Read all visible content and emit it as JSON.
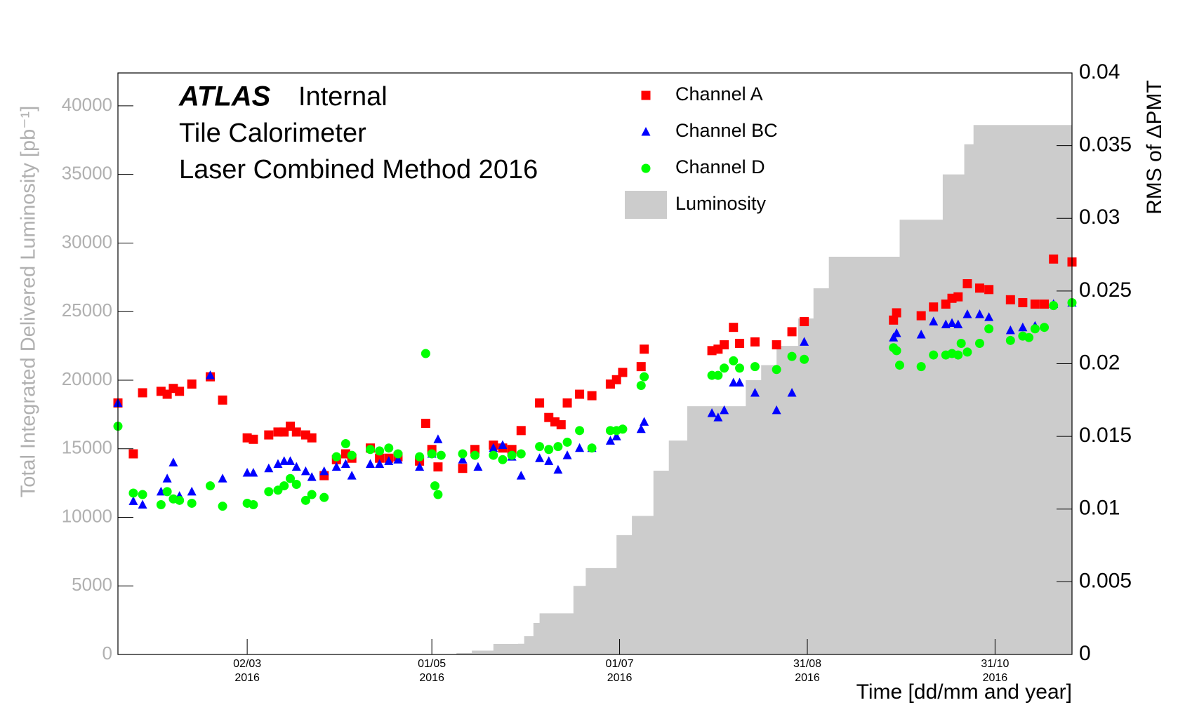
{
  "chart_data": {
    "type": "scatter",
    "title": {
      "experiment": "ATLAS",
      "status": "Internal",
      "lines": [
        "Tile Calorimeter",
        "Laser Combined Method 2016"
      ]
    },
    "x_label": "Time [dd/mm and year]",
    "y_label": "Total Integrated Delivered Luminosity [pb⁻¹]",
    "y2_label": "RMS of ΔPMT",
    "xlim": [
      "2016-01-20",
      "2016-11-25"
    ],
    "xticks": [
      {
        "value": "2016-03-02",
        "label": [
          "02/03",
          "2016"
        ]
      },
      {
        "value": "2016-05-01",
        "label": [
          "01/05",
          "2016"
        ]
      },
      {
        "value": "2016-07-01",
        "label": [
          "01/07",
          "2016"
        ]
      },
      {
        "value": "2016-08-31",
        "label": [
          "31/08",
          "2016"
        ]
      },
      {
        "value": "2016-10-31",
        "label": [
          "31/10",
          "2016"
        ]
      }
    ],
    "ylim": [
      0,
      42400
    ],
    "yticks": [
      0,
      5000,
      10000,
      15000,
      20000,
      25000,
      30000,
      35000,
      40000
    ],
    "y2lim": [
      0,
      0.04
    ],
    "y2ticks": [
      0,
      0.005,
      0.01,
      0.015,
      0.02,
      0.025,
      0.03,
      0.035,
      0.04
    ],
    "series": [
      {
        "name": "Channel A",
        "color": "#ff0000",
        "marker": "square",
        "axis": "y2",
        "x": [
          "2016-01-20",
          "2016-01-25",
          "2016-01-28",
          "2016-02-03",
          "2016-02-05",
          "2016-02-07",
          "2016-02-09",
          "2016-02-13",
          "2016-02-19",
          "2016-02-23",
          "2016-03-02",
          "2016-03-04",
          "2016-03-09",
          "2016-03-12",
          "2016-03-14",
          "2016-03-16",
          "2016-03-18",
          "2016-03-21",
          "2016-03-23",
          "2016-03-27",
          "2016-03-31",
          "2016-04-03",
          "2016-04-05",
          "2016-04-11",
          "2016-04-14",
          "2016-04-17",
          "2016-04-20",
          "2016-04-27",
          "2016-04-29",
          "2016-05-01",
          "2016-05-03",
          "2016-05-11",
          "2016-05-15",
          "2016-05-21",
          "2016-05-24",
          "2016-05-27",
          "2016-05-30",
          "2016-06-05",
          "2016-06-08",
          "2016-06-10",
          "2016-06-12",
          "2016-06-14",
          "2016-06-18",
          "2016-06-22",
          "2016-06-28",
          "2016-06-30",
          "2016-07-02",
          "2016-07-08",
          "2016-07-09",
          "2016-07-31",
          "2016-08-02",
          "2016-08-04",
          "2016-08-07",
          "2016-08-09",
          "2016-08-14",
          "2016-08-21",
          "2016-08-26",
          "2016-08-30",
          "2016-09-28",
          "2016-09-29",
          "2016-10-07",
          "2016-10-11",
          "2016-10-15",
          "2016-10-17",
          "2016-10-19",
          "2016-10-22",
          "2016-10-26",
          "2016-10-29",
          "2016-11-05",
          "2016-11-09",
          "2016-11-13",
          "2016-11-16",
          "2016-11-19",
          "2016-11-25"
        ],
        "values": [
          0.0173,
          0.0138,
          0.018,
          0.0181,
          0.0179,
          0.0183,
          0.0181,
          0.0186,
          0.0191,
          0.0175,
          0.0149,
          0.0148,
          0.0151,
          0.0153,
          0.0153,
          0.0157,
          0.0153,
          0.0151,
          0.0149,
          0.0123,
          0.0134,
          0.0138,
          0.0135,
          0.0142,
          0.0135,
          0.0135,
          0.0136,
          0.0133,
          0.0159,
          0.0141,
          0.0129,
          0.0128,
          0.0141,
          0.0144,
          0.0142,
          0.0141,
          0.0154,
          0.0173,
          0.0163,
          0.016,
          0.0158,
          0.0173,
          0.0179,
          0.0178,
          0.0186,
          0.0189,
          0.0194,
          0.0198,
          0.021,
          0.0209,
          0.021,
          0.0213,
          0.0225,
          0.0214,
          0.0215,
          0.0213,
          0.0222,
          0.0229,
          0.023,
          0.0235,
          0.0233,
          0.0239,
          0.0241,
          0.0245,
          0.0246,
          0.0255,
          0.0252,
          0.0251,
          0.0244,
          0.0242,
          0.0241,
          0.0241,
          0.0272,
          0.027
        ]
      },
      {
        "name": "Channel BC",
        "color": "#0000ff",
        "marker": "triangle",
        "axis": "y2",
        "x": [
          "2016-01-20",
          "2016-01-25",
          "2016-01-28",
          "2016-02-03",
          "2016-02-05",
          "2016-02-07",
          "2016-02-09",
          "2016-02-13",
          "2016-02-19",
          "2016-02-23",
          "2016-03-02",
          "2016-03-04",
          "2016-03-09",
          "2016-03-12",
          "2016-03-14",
          "2016-03-16",
          "2016-03-18",
          "2016-03-21",
          "2016-03-23",
          "2016-03-27",
          "2016-03-31",
          "2016-04-03",
          "2016-04-05",
          "2016-04-11",
          "2016-04-14",
          "2016-04-17",
          "2016-04-20",
          "2016-04-27",
          "2016-05-01",
          "2016-05-03",
          "2016-05-11",
          "2016-05-16",
          "2016-05-21",
          "2016-05-24",
          "2016-05-27",
          "2016-05-30",
          "2016-06-05",
          "2016-06-08",
          "2016-06-11",
          "2016-06-14",
          "2016-06-18",
          "2016-06-22",
          "2016-06-28",
          "2016-06-30",
          "2016-07-08",
          "2016-07-09",
          "2016-07-31",
          "2016-08-02",
          "2016-08-04",
          "2016-08-07",
          "2016-08-09",
          "2016-08-14",
          "2016-08-21",
          "2016-08-26",
          "2016-08-30",
          "2016-09-28",
          "2016-09-29",
          "2016-10-07",
          "2016-10-11",
          "2016-10-15",
          "2016-10-17",
          "2016-10-19",
          "2016-10-22",
          "2016-10-26",
          "2016-10-29",
          "2016-11-05",
          "2016-11-09",
          "2016-11-13",
          "2016-11-19",
          "2016-11-25"
        ],
        "values": [
          0.0173,
          0.01055,
          0.0103,
          0.0112,
          0.0121,
          0.0132,
          0.0109,
          0.0112,
          0.0192,
          0.0121,
          0.0125,
          0.0125,
          0.0128,
          0.0131,
          0.0133,
          0.0133,
          0.0129,
          0.0126,
          0.0122,
          0.0126,
          0.0129,
          0.0131,
          0.0123,
          0.0131,
          0.0131,
          0.0133,
          0.0134,
          0.0129,
          0.0138,
          0.0148,
          0.0134,
          0.0129,
          0.0142,
          0.0144,
          0.0136,
          0.0123,
          0.0135,
          0.0133,
          0.0127,
          0.0137,
          0.0142,
          0.0142,
          0.0147,
          0.015,
          0.0155,
          0.016,
          0.0166,
          0.0163,
          0.0168,
          0.0187,
          0.0187,
          0.018,
          0.0168,
          0.018,
          0.0215,
          0.0218,
          0.0221,
          0.022,
          0.0229,
          0.0227,
          0.0228,
          0.0227,
          0.0234,
          0.0234,
          0.0232,
          0.0223,
          0.0225,
          0.0226,
          0.0241,
          0.0242
        ]
      },
      {
        "name": "Channel D",
        "color": "#00ff00",
        "marker": "circle",
        "axis": "y2",
        "x": [
          "2016-01-20",
          "2016-01-25",
          "2016-01-28",
          "2016-02-03",
          "2016-02-05",
          "2016-02-07",
          "2016-02-09",
          "2016-02-13",
          "2016-02-19",
          "2016-02-23",
          "2016-03-02",
          "2016-03-04",
          "2016-03-09",
          "2016-03-12",
          "2016-03-14",
          "2016-03-16",
          "2016-03-18",
          "2016-03-21",
          "2016-03-23",
          "2016-03-27",
          "2016-03-31",
          "2016-04-03",
          "2016-04-05",
          "2016-04-11",
          "2016-04-14",
          "2016-04-17",
          "2016-04-20",
          "2016-04-27",
          "2016-04-29",
          "2016-05-01",
          "2016-05-02",
          "2016-05-03",
          "2016-05-04",
          "2016-05-11",
          "2016-05-15",
          "2016-05-21",
          "2016-05-24",
          "2016-05-27",
          "2016-05-30",
          "2016-06-05",
          "2016-06-08",
          "2016-06-11",
          "2016-06-14",
          "2016-06-18",
          "2016-06-22",
          "2016-06-28",
          "2016-06-30",
          "2016-07-02",
          "2016-07-08",
          "2016-07-09",
          "2016-07-31",
          "2016-08-02",
          "2016-08-04",
          "2016-08-07",
          "2016-08-09",
          "2016-08-14",
          "2016-08-21",
          "2016-08-26",
          "2016-08-30",
          "2016-09-28",
          "2016-09-29",
          "2016-09-30",
          "2016-10-07",
          "2016-10-11",
          "2016-10-15",
          "2016-10-17",
          "2016-10-19",
          "2016-10-20",
          "2016-10-22",
          "2016-10-26",
          "2016-10-29",
          "2016-11-05",
          "2016-11-09",
          "2016-11-11",
          "2016-11-13",
          "2016-11-16",
          "2016-11-19",
          "2016-11-25"
        ],
        "values": [
          0.0157,
          0.0111,
          0.011,
          0.0103,
          0.0112,
          0.0107,
          0.0106,
          0.0104,
          0.0116,
          0.0102,
          0.0104,
          0.0103,
          0.0112,
          0.0113,
          0.0116,
          0.0121,
          0.0117,
          0.0106,
          0.011,
          0.0108,
          0.0136,
          0.0145,
          0.0137,
          0.0141,
          0.014,
          0.0142,
          0.0138,
          0.0136,
          0.0207,
          0.0138,
          0.0116,
          0.011,
          0.0137,
          0.0138,
          0.0137,
          0.0137,
          0.0134,
          0.0137,
          0.0138,
          0.0143,
          0.0141,
          0.0143,
          0.0146,
          0.0154,
          0.0142,
          0.0154,
          0.0154,
          0.0155,
          0.0185,
          0.0191,
          0.0192,
          0.0192,
          0.0197,
          0.0202,
          0.0197,
          0.0198,
          0.0196,
          0.0205,
          0.0203,
          0.0211,
          0.0209,
          0.0199,
          0.0198,
          0.0206,
          0.0206,
          0.0207,
          0.0206,
          0.0214,
          0.0208,
          0.0214,
          0.0224,
          0.0216,
          0.0219,
          0.0218,
          0.0224,
          0.0225,
          0.024,
          0.0242
        ]
      },
      {
        "name": "Luminosity",
        "color": "#cccccc",
        "marker": "step-area",
        "axis": "y",
        "x": [
          "2016-05-03",
          "2016-05-09",
          "2016-05-14",
          "2016-05-21",
          "2016-05-29",
          "2016-05-31",
          "2016-06-03",
          "2016-06-05",
          "2016-06-12",
          "2016-06-16",
          "2016-06-20",
          "2016-06-25",
          "2016-06-30",
          "2016-07-05",
          "2016-07-12",
          "2016-07-17",
          "2016-07-23",
          "2016-08-06",
          "2016-08-11",
          "2016-08-16",
          "2016-08-21",
          "2016-08-28",
          "2016-09-02",
          "2016-09-07",
          "2016-09-24",
          "2016-09-30",
          "2016-10-08",
          "2016-10-14",
          "2016-10-21",
          "2016-10-24",
          "2016-11-25"
        ],
        "values": [
          0,
          100,
          280,
          770,
          780,
          1330,
          2300,
          3000,
          3000,
          5000,
          6300,
          6300,
          8700,
          10100,
          13400,
          15600,
          18100,
          18100,
          20000,
          21100,
          22500,
          24500,
          26700,
          29000,
          29000,
          31700,
          31700,
          35000,
          37200,
          38600,
          38600
        ]
      }
    ]
  }
}
